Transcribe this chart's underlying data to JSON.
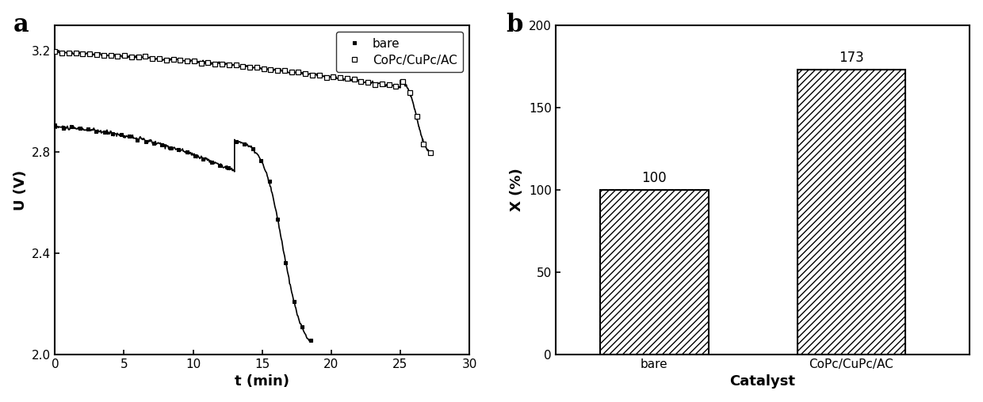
{
  "panel_a": {
    "label": "a",
    "xlabel": "t (min)",
    "ylabel": "U (V)",
    "xlim": [
      0,
      30
    ],
    "ylim": [
      2.0,
      3.3
    ],
    "yticks": [
      2.0,
      2.4,
      2.8,
      3.2
    ],
    "xticks": [
      0,
      5,
      10,
      15,
      20,
      25,
      30
    ],
    "legend_entries": [
      "bare",
      "CoPc/CuPc/AC"
    ]
  },
  "panel_b": {
    "label": "b",
    "categories": [
      "bare",
      "CoPc/CuPc/AC"
    ],
    "values": [
      100,
      173
    ],
    "xlabel": "Catalyst",
    "ylabel": "X (%)",
    "ylim": [
      0,
      200
    ],
    "yticks": [
      0,
      50,
      100,
      150,
      200
    ],
    "bar_color": "#ffffff",
    "bar_edge_color": "#000000",
    "hatch": "////",
    "bar_labels": [
      "100",
      "173"
    ],
    "bar_label_fontsize": 12
  }
}
